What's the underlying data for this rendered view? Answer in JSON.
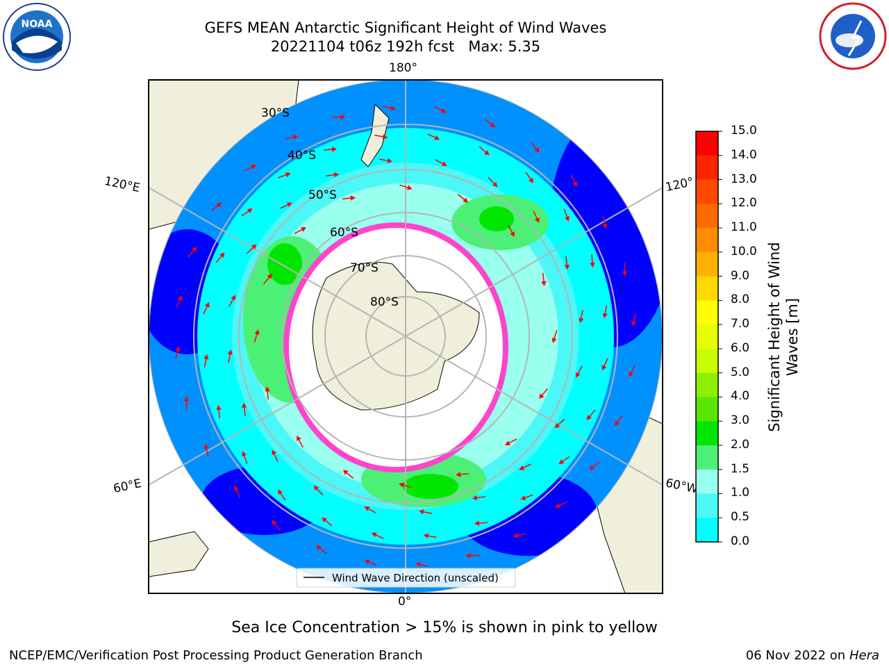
{
  "title": {
    "line1": "GEFS MEAN Antarctic Significant Height of Wind Waves",
    "line2": "20221104 t06z 192h fcst   Max: 5.35"
  },
  "map": {
    "lon_labels": {
      "top": "180°",
      "bottom": "0°",
      "upper_left": "120°E",
      "lower_left": "60°E",
      "upper_right": "120°",
      "lower_right": "60°W"
    },
    "lat_labels": [
      "30°S",
      "40°S",
      "50°S",
      "60°S",
      "70°S",
      "80°S"
    ],
    "legend": "Wind Wave Direction (unscaled)"
  },
  "colorbar": {
    "label_line1": "Significant Height of Wind",
    "label_line2": "Waves [m]",
    "ticks": [
      "15.0",
      "14.0",
      "13.0",
      "12.0",
      "11.0",
      "10.0",
      "9.0",
      "8.0",
      "7.0",
      "6.0",
      "5.0",
      "4.0",
      "3.0",
      "2.0",
      "1.5",
      "1.0",
      "0.5",
      "0.0"
    ],
    "colors": [
      "#ff0000",
      "#ff2400",
      "#ff4800",
      "#ff6a00",
      "#ff8c00",
      "#ffb000",
      "#ffd800",
      "#ffff00",
      "#e6ff00",
      "#c8ff00",
      "#8cf000",
      "#5ae600",
      "#00e600",
      "#4cf076",
      "#99ffee",
      "#4cf7f7",
      "#00ffff",
      "#0091ff",
      "#0000ff"
    ]
  },
  "footer": {
    "subtitle": "Sea Ice Concentration > 15% is shown in pink to yellow",
    "credit": "NCEP/EMC/Verification Post Processing Product Generation Branch",
    "date": "06 Nov 2022 on",
    "machine": "Hera"
  },
  "logos": {
    "left": "NOAA",
    "right_top": "NATIONAL WEATHER SERVICE"
  }
}
